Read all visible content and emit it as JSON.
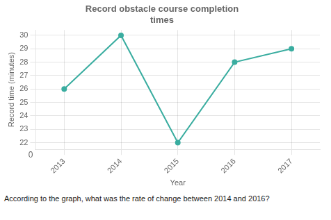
{
  "chart_data": {
    "type": "line",
    "title": "Record obstacle course completion\ntimes",
    "xlabel": "Year",
    "ylabel": "Record time (minutes)",
    "x": [
      2013,
      2014,
      2015,
      2016,
      2017
    ],
    "values": [
      26,
      30,
      22,
      28,
      29
    ],
    "color": "#3aada0",
    "marker": "circle",
    "xlim": [
      2012.5,
      2017.5
    ],
    "xticks": [
      2013,
      2014,
      2015,
      2016,
      2017
    ],
    "ylim": [
      21.5,
      30.4
    ],
    "yticks": [
      22,
      23,
      24,
      25,
      26,
      27,
      28,
      29,
      30
    ],
    "grid": true,
    "annotations": [
      "0",
      "According to the graph, what was the rate of change between 2014 and 2016?"
    ]
  }
}
